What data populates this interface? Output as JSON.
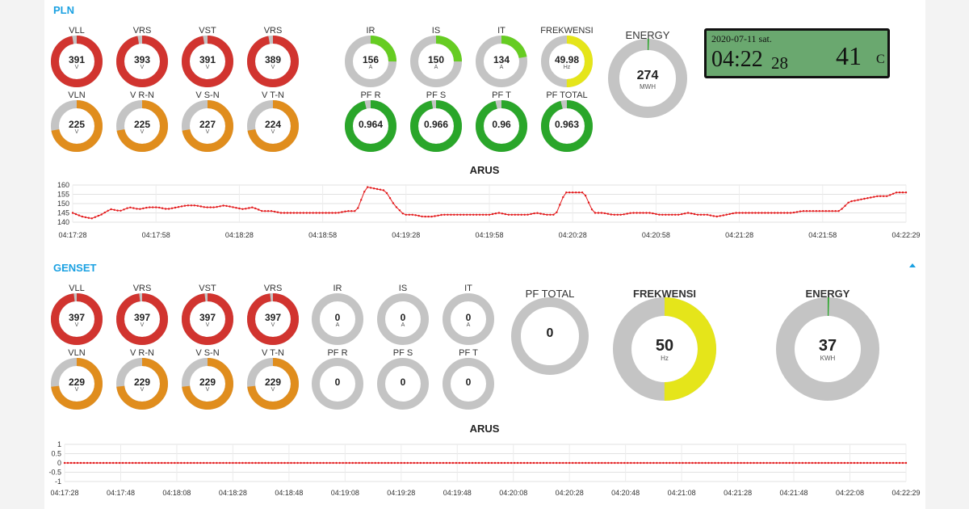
{
  "pln": {
    "title": "PLN",
    "gauges": [
      {
        "label": "VLL",
        "value": "391",
        "unit": "V",
        "color": "#d1342f",
        "fill": 0.97
      },
      {
        "label": "VRS",
        "value": "393",
        "unit": "V",
        "color": "#d1342f",
        "fill": 0.97
      },
      {
        "label": "VST",
        "value": "391",
        "unit": "V",
        "color": "#d1342f",
        "fill": 0.97
      },
      {
        "label": "VRS",
        "value": "389",
        "unit": "V",
        "color": "#d1342f",
        "fill": 0.97
      },
      {
        "label": "VLN",
        "value": "225",
        "unit": "V",
        "color": "#e08d1d",
        "fill": 0.72
      },
      {
        "label": "V R-N",
        "value": "225",
        "unit": "V",
        "color": "#e08d1d",
        "fill": 0.72
      },
      {
        "label": "V S-N",
        "value": "227",
        "unit": "V",
        "color": "#e08d1d",
        "fill": 0.72
      },
      {
        "label": "V T-N",
        "value": "224",
        "unit": "V",
        "color": "#e08d1d",
        "fill": 0.72
      },
      {
        "label": "IR",
        "value": "156",
        "unit": "A",
        "color": "#66cc22",
        "fill": 0.25
      },
      {
        "label": "IS",
        "value": "150",
        "unit": "A",
        "color": "#66cc22",
        "fill": 0.25
      },
      {
        "label": "IT",
        "value": "134",
        "unit": "A",
        "color": "#66cc22",
        "fill": 0.22
      },
      {
        "label": "FREKWENSI",
        "value": "49.98",
        "unit": "Hz",
        "color": "#e5e51a",
        "fill": 0.5
      },
      {
        "label": "PF R",
        "value": "0.964",
        "unit": "",
        "color": "#2aa62a",
        "fill": 0.96
      },
      {
        "label": "PF S",
        "value": "0.966",
        "unit": "",
        "color": "#2aa62a",
        "fill": 0.97
      },
      {
        "label": "PF T",
        "value": "0.96",
        "unit": "",
        "color": "#2aa62a",
        "fill": 0.96
      },
      {
        "label": "PF TOTAL",
        "value": "0.963",
        "unit": "",
        "color": "#2aa62a",
        "fill": 0.96
      }
    ],
    "energy": {
      "label": "ENERGY",
      "value": "274",
      "unit": "MWH",
      "color": "#2aa62a",
      "fill": 0.005
    },
    "clock": {
      "date": "2020-07-11 sat.",
      "hm": "04:22",
      "sec": "28",
      "temp": "41",
      "temp_unit": "C"
    }
  },
  "genset": {
    "title": "GENSET",
    "gauges": [
      {
        "label": "VLL",
        "value": "397",
        "unit": "V",
        "color": "#d1342f",
        "fill": 0.98
      },
      {
        "label": "VRS",
        "value": "397",
        "unit": "V",
        "color": "#d1342f",
        "fill": 0.98
      },
      {
        "label": "VST",
        "value": "397",
        "unit": "V",
        "color": "#d1342f",
        "fill": 0.98
      },
      {
        "label": "VRS",
        "value": "397",
        "unit": "V",
        "color": "#d1342f",
        "fill": 0.98
      },
      {
        "label": "VLN",
        "value": "229",
        "unit": "V",
        "color": "#e08d1d",
        "fill": 0.73
      },
      {
        "label": "V R-N",
        "value": "229",
        "unit": "V",
        "color": "#e08d1d",
        "fill": 0.73
      },
      {
        "label": "V S-N",
        "value": "229",
        "unit": "V",
        "color": "#e08d1d",
        "fill": 0.73
      },
      {
        "label": "V T-N",
        "value": "229",
        "unit": "V",
        "color": "#e08d1d",
        "fill": 0.73
      },
      {
        "label": "IR",
        "value": "0",
        "unit": "A",
        "color": "#66cc22",
        "fill": 0
      },
      {
        "label": "IS",
        "value": "0",
        "unit": "A",
        "color": "#66cc22",
        "fill": 0
      },
      {
        "label": "IT",
        "value": "0",
        "unit": "A",
        "color": "#66cc22",
        "fill": 0
      },
      {
        "label": "PF R",
        "value": "0",
        "unit": "",
        "color": "#2aa62a",
        "fill": 0
      },
      {
        "label": "PF S",
        "value": "0",
        "unit": "",
        "color": "#2aa62a",
        "fill": 0
      },
      {
        "label": "PF T",
        "value": "0",
        "unit": "",
        "color": "#2aa62a",
        "fill": 0
      }
    ],
    "pf_total": {
      "label": "PF TOTAL",
      "value": "0",
      "unit": "",
      "color": "#2aa62a",
      "fill": 0
    },
    "frekwensi": {
      "label": "FREKWENSI",
      "value": "50",
      "unit": "Hz",
      "color": "#e5e51a",
      "fill": 0.5
    },
    "energy": {
      "label": "ENERGY",
      "value": "37",
      "unit": "KWH",
      "color": "#2aa62a",
      "fill": 0.003
    }
  },
  "chart_data": [
    {
      "type": "line",
      "title": "ARUS",
      "series_color": "#e31a1c",
      "ylim": [
        140,
        160
      ],
      "yticks": [
        "160",
        "155",
        "150",
        "145",
        "140"
      ],
      "xticks": [
        "04:17:28",
        "04:17:58",
        "04:18:28",
        "04:18:58",
        "04:19:28",
        "04:19:58",
        "04:20:28",
        "04:20:58",
        "04:21:28",
        "04:21:58",
        "04:22:29"
      ],
      "grid": true,
      "values": [
        145,
        143,
        142,
        144,
        147,
        146,
        148,
        147,
        148,
        148,
        147,
        148,
        149,
        149,
        148,
        148,
        149,
        148,
        147,
        148,
        146,
        146,
        145,
        145,
        145,
        145,
        145,
        145,
        145,
        146,
        146,
        159,
        158,
        157,
        149,
        144,
        144,
        143,
        143,
        144,
        144,
        144,
        144,
        144,
        144,
        145,
        144,
        144,
        144,
        145,
        144,
        144,
        156,
        156,
        156,
        145,
        145,
        144,
        144,
        145,
        145,
        145,
        144,
        144,
        144,
        145,
        144,
        144,
        143,
        144,
        145,
        145,
        145,
        145,
        145,
        145,
        145,
        146,
        146,
        146,
        146,
        146,
        151,
        152,
        153,
        154,
        154,
        156,
        156
      ]
    },
    {
      "type": "line",
      "title": "ARUS",
      "series_color": "#e31a1c",
      "ylim": [
        -1,
        1
      ],
      "yticks": [
        "1",
        "0.5",
        "0",
        "-0.5",
        "-1"
      ],
      "xticks": [
        "04:17:28",
        "04:17:48",
        "04:18:08",
        "04:18:28",
        "04:18:48",
        "04:19:08",
        "04:19:28",
        "04:19:48",
        "04:20:08",
        "04:20:28",
        "04:20:48",
        "04:21:08",
        "04:21:28",
        "04:21:48",
        "04:22:08",
        "04:22:29"
      ],
      "grid": true,
      "values": [
        0,
        0
      ]
    }
  ]
}
